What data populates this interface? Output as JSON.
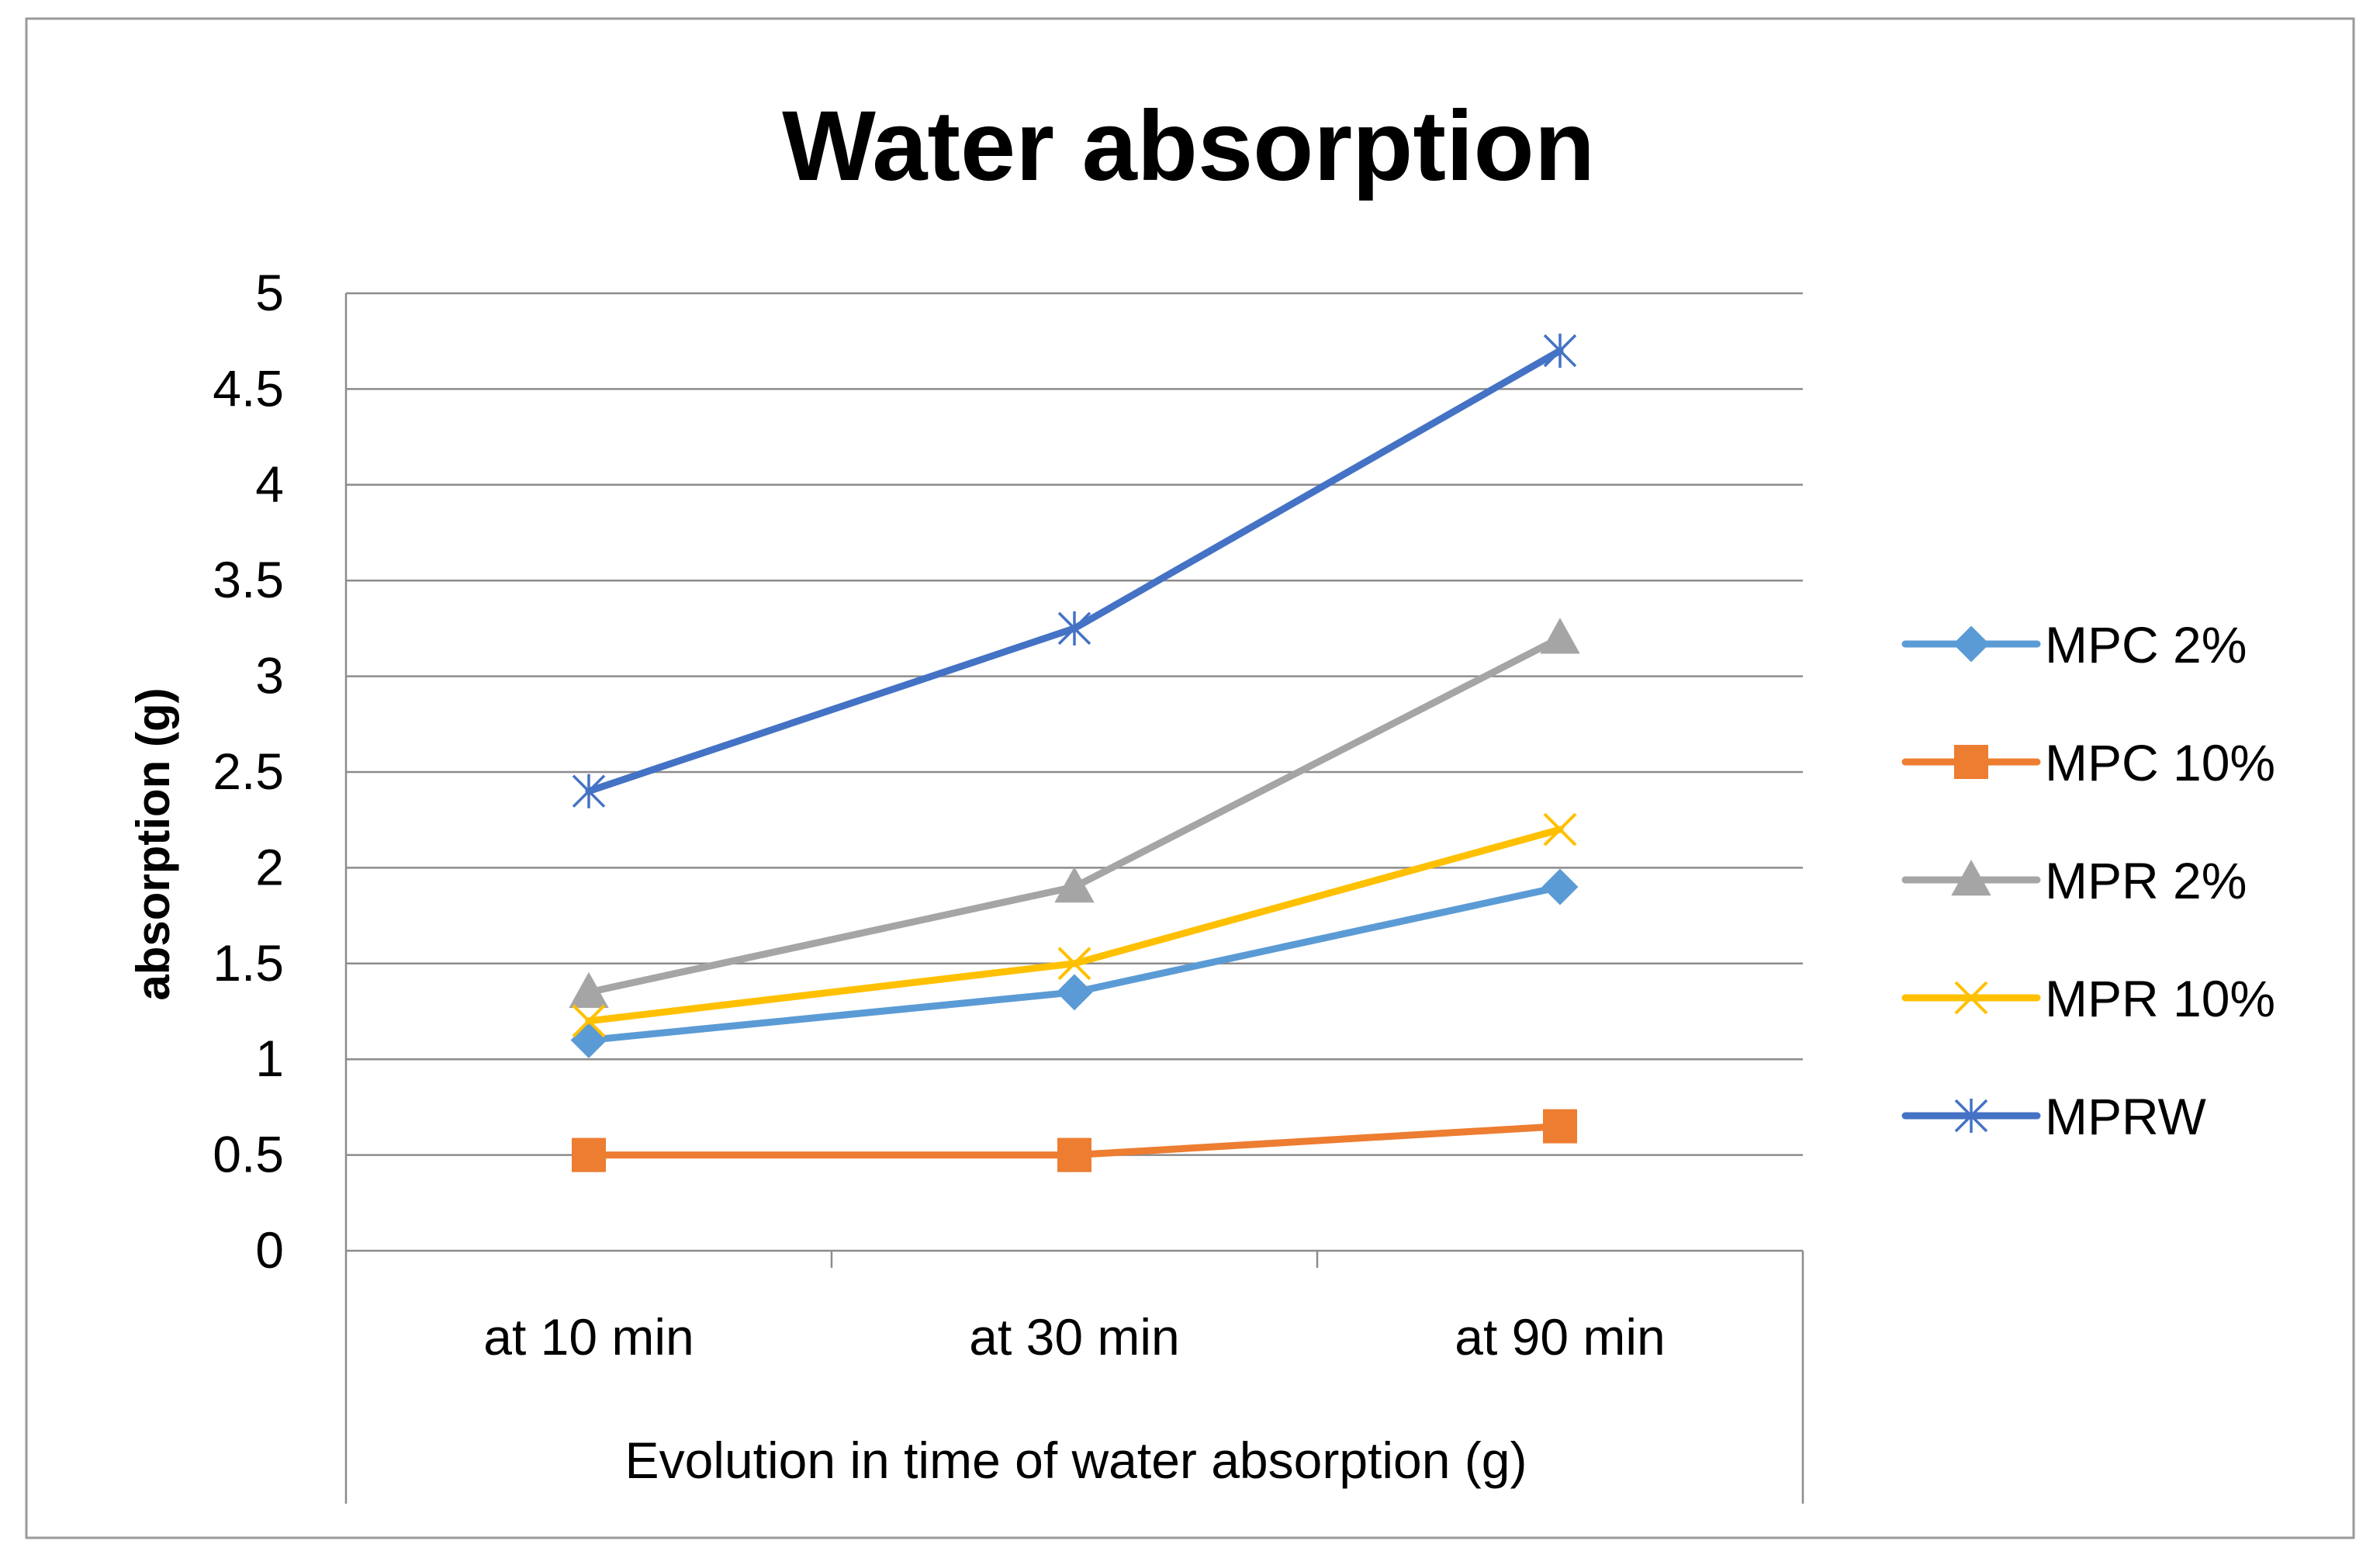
{
  "chart_data": {
    "type": "line",
    "title": "Water absorption",
    "xlabel": "Evolution in time of water absorption (g)",
    "ylabel": "absorption (g)",
    "categories": [
      "at 10 min",
      "at 30 min",
      "at 90 min"
    ],
    "ylim": [
      0,
      5
    ],
    "yticks": [
      0,
      0.5,
      1,
      1.5,
      2,
      2.5,
      3,
      3.5,
      4,
      4.5,
      5
    ],
    "ytick_labels": [
      "0",
      "0.5",
      "1",
      "1.5",
      "2",
      "2.5",
      "3",
      "3.5",
      "4",
      "4.5",
      "5"
    ],
    "grid": true,
    "legend_position": "right",
    "series": [
      {
        "name": "MPC 2%",
        "color": "#5B9BD5",
        "marker": "diamond",
        "values": [
          1.1,
          1.35,
          1.9
        ]
      },
      {
        "name": "MPC 10%",
        "color": "#ED7D31",
        "marker": "square",
        "values": [
          0.5,
          0.5,
          0.65
        ]
      },
      {
        "name": "MPR 2%",
        "color": "#A5A5A5",
        "marker": "triangle",
        "values": [
          1.35,
          1.9,
          3.2
        ]
      },
      {
        "name": "MPR 10%",
        "color": "#FFC000",
        "marker": "x",
        "values": [
          1.2,
          1.5,
          2.2
        ]
      },
      {
        "name": "MPRW",
        "color": "#4472C4",
        "marker": "star",
        "values": [
          2.4,
          3.25,
          4.7
        ]
      }
    ]
  }
}
